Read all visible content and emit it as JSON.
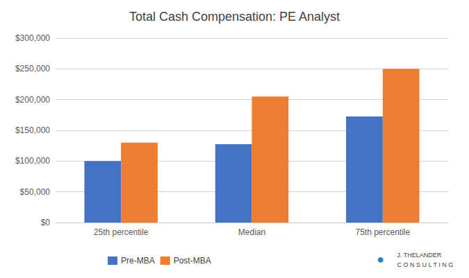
{
  "chart_data": {
    "type": "bar",
    "title": "Total Cash Compensation: PE Analyst",
    "categories": [
      "25th percentile",
      "Median",
      "75th percentile"
    ],
    "series": [
      {
        "name": "Pre-MBA",
        "color": "#4472C4",
        "values": [
          100000,
          127500,
          172500
        ]
      },
      {
        "name": "Post-MBA",
        "color": "#ED7D31",
        "values": [
          130000,
          205000,
          250000
        ]
      }
    ],
    "ylim": [
      0,
      300000
    ],
    "yticks": [
      {
        "value": 0,
        "label": "$0"
      },
      {
        "value": 50000,
        "label": "$50,000"
      },
      {
        "value": 100000,
        "label": "$100,000"
      },
      {
        "value": 150000,
        "label": "$150,000"
      },
      {
        "value": 200000,
        "label": "$200,000"
      },
      {
        "value": 250000,
        "label": "$250,000"
      },
      {
        "value": 300000,
        "label": "$300,000"
      }
    ],
    "grid": true,
    "legend": "bottom",
    "annotations": [
      {
        "text": "J. THELANDER\nC O N S U L T I N G",
        "color": "#404040"
      },
      {
        "text": "●",
        "color": "#2E86C1"
      }
    ]
  }
}
